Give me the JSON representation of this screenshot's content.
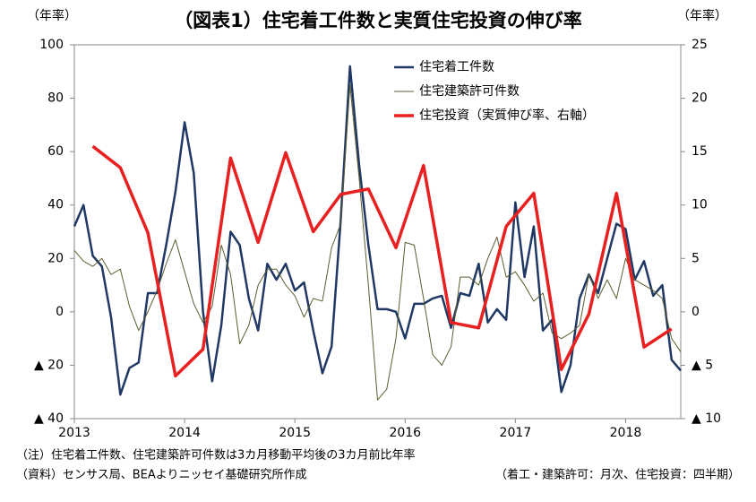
{
  "chart_data": {
    "type": "line",
    "title": "（図表1）住宅着工件数と実質住宅投資の伸び率",
    "y_label": "（年率）",
    "y2_label": "（年率）",
    "notes": [
      "（注）住宅着工件数、住宅建築許可件数は3カ月移動平均後の3カ月前比年率",
      "（資料）センサス局、BEAよりニッセイ基礎研究所作成"
    ],
    "notes_right": "（着工・建築許可：月次、住宅投資：四半期）",
    "xlim": [
      2013,
      2018.5
    ],
    "xticks": [
      2013,
      2014,
      2015,
      2016,
      2017,
      2018
    ],
    "ylim": [
      -40,
      100
    ],
    "yticks": [
      100,
      80,
      60,
      40,
      20,
      0,
      {
        "value": -20,
        "label": "▲ 20"
      },
      {
        "value": -40,
        "label": "▲ 40"
      }
    ],
    "y2lim": [
      -10,
      25
    ],
    "y2ticks": [
      25,
      20,
      15,
      10,
      5,
      0,
      {
        "value": -5,
        "label": "▲ 5"
      },
      {
        "value": -10,
        "label": "▲ 10"
      }
    ],
    "x": [
      2013,
      2013.083,
      2013.167,
      2013.25,
      2013.333,
      2013.417,
      2013.5,
      2013.583,
      2013.667,
      2013.75,
      2013.833,
      2013.917,
      2014,
      2014.083,
      2014.167,
      2014.25,
      2014.333,
      2014.417,
      2014.5,
      2014.583,
      2014.667,
      2014.75,
      2014.833,
      2014.917,
      2015,
      2015.083,
      2015.167,
      2015.25,
      2015.333,
      2015.417,
      2015.5,
      2015.583,
      2015.667,
      2015.75,
      2015.833,
      2015.917,
      2016,
      2016.083,
      2016.167,
      2016.25,
      2016.333,
      2016.417,
      2016.5,
      2016.583,
      2016.667,
      2016.75,
      2016.833,
      2016.917,
      2017,
      2017.083,
      2017.167,
      2017.25,
      2017.333,
      2017.417,
      2017.5,
      2017.583,
      2017.667,
      2017.75,
      2017.833,
      2017.917,
      2018,
      2018.083,
      2018.167,
      2018.25,
      2018.333,
      2018.417,
      2018.5
    ],
    "series": [
      {
        "name": "住宅着工件数",
        "color": "#1f3864",
        "width": 2.5,
        "values": [
          32,
          40,
          21,
          17,
          -2,
          -31,
          -21,
          -19,
          7,
          7,
          25,
          45,
          71,
          52,
          0,
          -26,
          -5,
          30,
          25,
          5,
          -7,
          18,
          12,
          18,
          8,
          11,
          -7,
          -23,
          -13,
          35,
          92,
          55,
          25,
          1,
          1,
          0,
          -10,
          3,
          3,
          5,
          6,
          -6,
          7,
          6,
          18,
          -4,
          1,
          -3,
          41,
          13,
          32,
          -7,
          -3,
          -30,
          -20,
          5,
          14,
          7,
          20,
          33,
          31,
          12,
          19,
          6,
          10,
          -18,
          -22
        ]
      },
      {
        "name": "住宅建築許可件数",
        "color": "#5c5c30",
        "width": 1,
        "values": [
          23,
          19,
          17,
          20,
          14,
          16,
          2,
          -7,
          0,
          8,
          18,
          27,
          15,
          3,
          -4,
          2,
          25,
          14,
          -12,
          -5,
          10,
          16,
          16,
          10,
          6,
          -2,
          5,
          4,
          24,
          33,
          85,
          50,
          10,
          -33,
          -29,
          -10,
          26,
          25,
          5,
          -16,
          -20,
          -13,
          13,
          13,
          10,
          20,
          28,
          13,
          15,
          10,
          4,
          7,
          -8,
          -10,
          -8,
          -5,
          14,
          5,
          12,
          5,
          20,
          12,
          10,
          8,
          5,
          -10,
          -15
        ]
      },
      {
        "name": "住宅投資（実質伸び率、右軸）",
        "color": "#e8201f",
        "width": 3.5,
        "axis": "y2",
        "x": [
          2013.167,
          2013.417,
          2013.667,
          2013.917,
          2014.167,
          2014.417,
          2014.667,
          2014.917,
          2015.167,
          2015.417,
          2015.667,
          2015.917,
          2016.167,
          2016.417,
          2016.667,
          2016.917,
          2017.167,
          2017.417,
          2017.667,
          2017.917,
          2018.167,
          2018.417
        ],
        "values": [
          15.5,
          13.5,
          7.4,
          -6,
          -3.5,
          14.4,
          6.5,
          14.9,
          7.5,
          11,
          11.5,
          6,
          13.7,
          -1,
          -1.5,
          8,
          11.1,
          -5.4,
          -0.2,
          11.1,
          -3.3,
          -1.6
        ]
      }
    ]
  }
}
